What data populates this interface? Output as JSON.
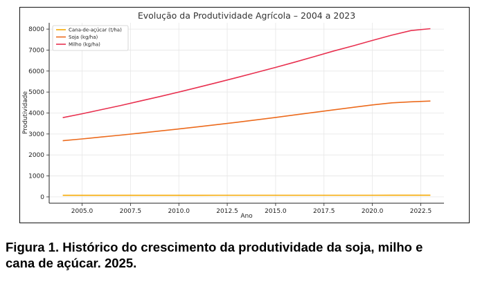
{
  "chart_data": {
    "type": "line",
    "title": "Evolução da Produtividade Agrícola – 2004 a 2023",
    "xlabel": "Ano",
    "ylabel": "Produtividade",
    "xlim": [
      2003.3,
      2023.7
    ],
    "ylim": [
      -300,
      8300
    ],
    "x_ticks": [
      2005.0,
      2007.5,
      2010.0,
      2012.5,
      2015.0,
      2017.5,
      2020.0,
      2022.5
    ],
    "x_tick_labels": [
      "2005.0",
      "2007.5",
      "2010.0",
      "2012.5",
      "2015.0",
      "2017.5",
      "2020.0",
      "2022.5"
    ],
    "y_ticks": [
      0,
      1000,
      2000,
      3000,
      4000,
      5000,
      6000,
      7000,
      8000
    ],
    "y_tick_labels": [
      "0",
      "1000",
      "2000",
      "3000",
      "4000",
      "5000",
      "6000",
      "7000",
      "8000"
    ],
    "grid": true,
    "legend_position": "top-left",
    "x": [
      2004,
      2005,
      2006,
      2007,
      2008,
      2009,
      2010,
      2011,
      2012,
      2013,
      2014,
      2015,
      2016,
      2017,
      2018,
      2019,
      2020,
      2021,
      2022,
      2023
    ],
    "series": [
      {
        "name": "Cana-de-açúcar (t/ha)",
        "color": "#f5a800",
        "values": [
          75,
          75,
          76,
          76,
          76,
          77,
          77,
          77,
          78,
          78,
          78,
          79,
          79,
          79,
          80,
          80,
          80,
          81,
          81,
          81
        ]
      },
      {
        "name": "Soja (kg/ha)",
        "color": "#ec6a1c",
        "values": [
          2680,
          2765,
          2855,
          2945,
          3040,
          3140,
          3240,
          3345,
          3450,
          3560,
          3675,
          3790,
          3910,
          4030,
          4150,
          4270,
          4385,
          4485,
          4535,
          4570
        ]
      },
      {
        "name": "Milho (kg/ha)",
        "color": "#e8304f",
        "values": [
          3780,
          3965,
          4160,
          4360,
          4570,
          4780,
          5000,
          5225,
          5455,
          5690,
          5930,
          6175,
          6430,
          6690,
          6955,
          7200,
          7460,
          7710,
          7930,
          8020
        ]
      }
    ]
  },
  "caption": {
    "line1": "Figura 1.  Histórico do crescimento da produtividade da soja, milho e",
    "line2": "cana de açúcar.  2025."
  }
}
